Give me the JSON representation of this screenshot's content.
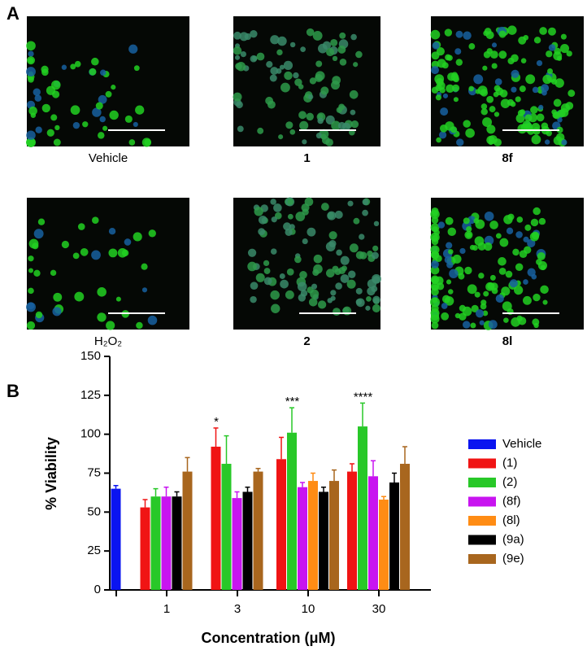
{
  "panel_a": {
    "label": "A",
    "images": [
      {
        "caption": "Vehicle"
      },
      {
        "caption": "1"
      },
      {
        "caption": "8f"
      },
      {
        "caption": "H₂O₂"
      },
      {
        "caption": "2"
      },
      {
        "caption": "8l"
      }
    ]
  },
  "panel_b": {
    "label": "B"
  },
  "chart_data": {
    "type": "bar",
    "xlabel": "Concentration (μM)",
    "ylabel": "% Viability",
    "categories": [
      null,
      "1",
      "3",
      "10",
      "30"
    ],
    "ylim": [
      0,
      150
    ],
    "yticks": [
      0,
      25,
      50,
      75,
      100,
      125,
      150
    ],
    "legend": "right",
    "series": [
      {
        "name": "Vehicle",
        "color": "#0a14f0",
        "values": [
          65,
          null,
          null,
          null,
          null
        ],
        "errors": [
          2,
          null,
          null,
          null,
          null
        ]
      },
      {
        "name": "(1)",
        "color": "#f01414",
        "values": [
          null,
          53,
          92,
          84,
          76
        ],
        "errors": [
          null,
          5,
          12,
          14,
          5
        ]
      },
      {
        "name": "(2)",
        "color": "#28c828",
        "values": [
          null,
          60,
          81,
          101,
          105
        ],
        "errors": [
          null,
          5,
          18,
          16,
          15
        ]
      },
      {
        "name": "(8f)",
        "color": "#c814f0",
        "values": [
          null,
          60,
          59,
          66,
          73
        ],
        "errors": [
          null,
          6,
          4,
          3,
          10
        ]
      },
      {
        "name": "(8l)",
        "color": "#ff8c14",
        "values": [
          null,
          null,
          null,
          70,
          58
        ],
        "errors": [
          null,
          null,
          null,
          5,
          2
        ]
      },
      {
        "name": "(9a)",
        "color": "#000000",
        "values": [
          null,
          60,
          63,
          63,
          69
        ],
        "errors": [
          null,
          3,
          3,
          3,
          6
        ]
      },
      {
        "name": "(9e)",
        "color": "#a8661e",
        "values": [
          null,
          76,
          76,
          70,
          81
        ],
        "errors": [
          null,
          9,
          2,
          7,
          11
        ]
      }
    ],
    "annotations": [
      {
        "text": "*",
        "series": 1,
        "category": 2
      },
      {
        "text": "***",
        "series": 2,
        "category": 3
      },
      {
        "text": "****",
        "series": 2,
        "category": 4
      }
    ]
  }
}
